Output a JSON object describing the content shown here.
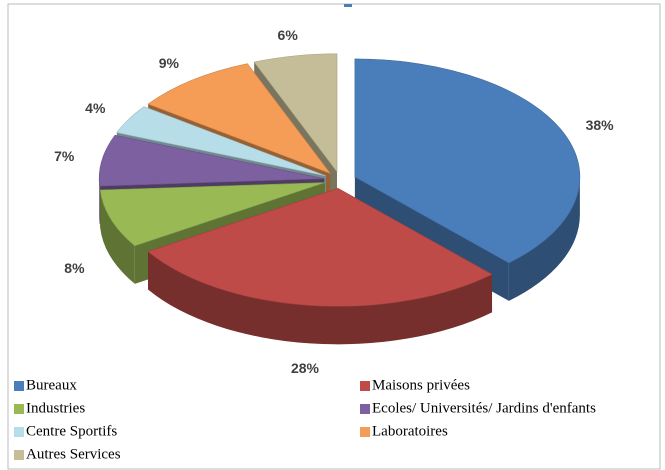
{
  "chart_data": {
    "type": "pie",
    "series": [
      {
        "name": "Bureaux",
        "color": "#4a7ebb",
        "values": [
          38
        ],
        "value_labels": [
          "38%"
        ]
      },
      {
        "name": "Maisons privées",
        "color": "#be4b48",
        "values": [
          28
        ],
        "value_labels": [
          "28%"
        ]
      },
      {
        "name": "Industries",
        "color": "#98b954",
        "values": [
          8
        ],
        "value_labels": [
          "8%"
        ]
      },
      {
        "name": "Ecoles/ Universités/ Jardins d'enfants",
        "color": "#7d60a0",
        "values": [
          7
        ],
        "value_labels": [
          "7%"
        ]
      },
      {
        "name": "Centre Sportifs",
        "color": "#b7dee8",
        "values": [
          4
        ],
        "value_labels": [
          "4%"
        ]
      },
      {
        "name": "Laboratoires",
        "color": "#f59d56",
        "values": [
          9
        ],
        "value_labels": [
          "9%"
        ]
      },
      {
        "name": "Autres Services",
        "color": "#c4bd97",
        "values": [
          6
        ],
        "value_labels": [
          "6%"
        ]
      }
    ]
  }
}
